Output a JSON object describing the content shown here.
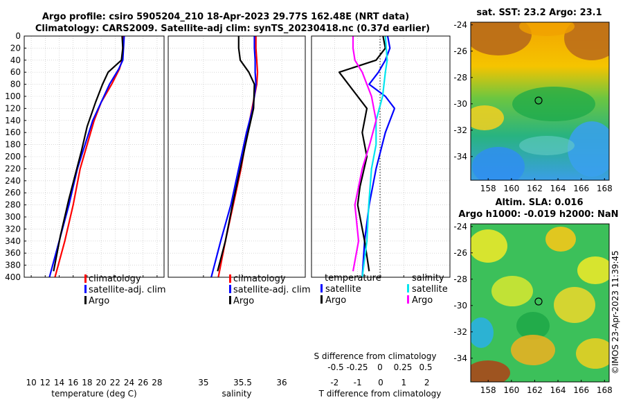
{
  "header": {
    "line1": "Argo profile: csiro 5905204_210 18-Apr-2023 29.77S 162.48E (NRT data)",
    "line2": "Climatology: CARS2009. Satellite-adj clim: synTS_20230418.nc (0.37d earlier)"
  },
  "colors": {
    "climatology": "#ff0000",
    "satellite": "#0000ff",
    "argo": "#000000",
    "sat_s": "#00e5ee",
    "argo_s": "#ff00ff"
  },
  "chart_data": [
    {
      "type": "line",
      "id": "temperature",
      "xlabel": "temperature (deg C)",
      "ylabel": "",
      "xlim": [
        9,
        29
      ],
      "ylim": [
        400,
        0
      ],
      "xticks": [
        10,
        12,
        14,
        16,
        18,
        20,
        22,
        24,
        26,
        28
      ],
      "yticks": [
        0,
        20,
        40,
        60,
        80,
        100,
        120,
        140,
        160,
        180,
        200,
        220,
        240,
        260,
        280,
        300,
        320,
        340,
        360,
        380,
        400
      ],
      "legend": [
        "climatology",
        "satellite-adj. clim",
        "Argo"
      ],
      "series": [
        {
          "name": "climatology",
          "color": "#ff0000",
          "x": [
            23.2,
            23.1,
            23.0,
            22.6,
            21.5,
            20.0,
            19.0,
            18.0,
            17.0,
            16.0,
            14.8,
            13.4
          ],
          "y": [
            0,
            20,
            40,
            55,
            80,
            110,
            140,
            180,
            220,
            280,
            340,
            400
          ]
        },
        {
          "name": "satellite-adj. clim",
          "color": "#0000ff",
          "x": [
            23.3,
            23.2,
            23.1,
            22.5,
            21.2,
            20.0,
            18.8,
            17.7,
            16.6,
            15.4,
            14.0,
            12.6
          ],
          "y": [
            0,
            20,
            40,
            55,
            80,
            110,
            140,
            180,
            220,
            280,
            340,
            400
          ]
        },
        {
          "name": "Argo",
          "color": "#000000",
          "x": [
            23.0,
            23.1,
            22.9,
            21.0,
            20.2,
            19.2,
            18.0,
            17.2,
            16.3,
            15.4,
            14.2,
            13.2
          ],
          "y": [
            0,
            20,
            40,
            60,
            80,
            110,
            150,
            190,
            230,
            270,
            330,
            390
          ]
        }
      ]
    },
    {
      "type": "line",
      "id": "salinity",
      "xlabel": "salinity",
      "ylabel": "",
      "xlim": [
        34.55,
        36.3
      ],
      "ylim": [
        400,
        0
      ],
      "xticks": [
        35,
        35.5,
        36
      ],
      "legend": [
        "climatology",
        "satellite-adj. clim",
        "Argo"
      ],
      "series": [
        {
          "name": "climatology",
          "color": "#ff0000",
          "x": [
            35.67,
            35.67,
            35.68,
            35.69,
            35.68,
            35.62,
            35.56,
            35.48,
            35.38,
            35.28,
            35.19
          ],
          "y": [
            0,
            20,
            40,
            60,
            80,
            120,
            160,
            220,
            280,
            340,
            400
          ]
        },
        {
          "name": "satellite-adj. clim",
          "color": "#0000ff",
          "x": [
            35.65,
            35.65,
            35.66,
            35.66,
            35.67,
            35.63,
            35.55,
            35.45,
            35.35,
            35.22,
            35.1
          ],
          "y": [
            0,
            20,
            40,
            60,
            80,
            120,
            160,
            220,
            280,
            340,
            400
          ]
        },
        {
          "name": "Argo",
          "color": "#000000",
          "x": [
            35.45,
            35.45,
            35.47,
            35.58,
            35.65,
            35.64,
            35.57,
            35.47,
            35.37,
            35.28,
            35.18
          ],
          "y": [
            0,
            20,
            40,
            60,
            80,
            120,
            160,
            220,
            280,
            340,
            390
          ]
        }
      ]
    },
    {
      "type": "line",
      "id": "difference",
      "xlabel": "T difference from climatology",
      "slabel": "S difference from climatology",
      "xlim": [
        -3,
        3
      ],
      "ylim": [
        400,
        0
      ],
      "xticks": [
        -2,
        -1,
        0,
        1,
        2
      ],
      "sticks": [
        "-0.5",
        "-0.25",
        "0",
        "0.25",
        "0.5"
      ],
      "legend": {
        "temperature_title": "temperature",
        "salinity_title": "salinity",
        "t_items": [
          "satellite",
          "Argo"
        ],
        "s_items": [
          "satellite",
          "Argo"
        ]
      },
      "series": [
        {
          "name": "T satellite",
          "color": "#0000ff",
          "x": [
            0.3,
            0.4,
            0.2,
            -0.1,
            -0.5,
            0.2,
            0.6,
            0.2,
            -0.2,
            -0.5,
            -0.7,
            -0.8
          ],
          "y": [
            0,
            20,
            40,
            60,
            80,
            100,
            120,
            160,
            220,
            280,
            340,
            400
          ]
        },
        {
          "name": "T Argo",
          "color": "#000000",
          "x": [
            0.1,
            0.2,
            -0.2,
            -1.8,
            -1.4,
            -0.6,
            -0.8,
            -0.6,
            -0.9,
            -1.0,
            -0.7,
            -0.5
          ],
          "y": [
            0,
            20,
            40,
            60,
            80,
            120,
            160,
            200,
            250,
            280,
            340,
            390
          ]
        },
        {
          "name": "S satellite",
          "color": "#00e5ee",
          "x": [
            0.05,
            0.06,
            0.07,
            0.05,
            0.02,
            -0.05,
            -0.05,
            -0.1,
            -0.13,
            -0.15,
            -0.2
          ],
          "y": [
            0,
            20,
            40,
            60,
            100,
            140,
            180,
            220,
            280,
            340,
            400
          ]
        },
        {
          "name": "S Argo",
          "color": "#ff00ff",
          "x": [
            -0.3,
            -0.3,
            -0.28,
            -0.2,
            -0.1,
            -0.05,
            -0.12,
            -0.2,
            -0.28,
            -0.24,
            -0.3
          ],
          "y": [
            0,
            20,
            40,
            60,
            100,
            140,
            180,
            220,
            280,
            340,
            390
          ]
        }
      ]
    },
    {
      "type": "heatmap",
      "id": "sst_map",
      "title": "sat. SST: 23.2 Argo: 23.1",
      "xticks": [
        158,
        160,
        162,
        164,
        166,
        168
      ],
      "yticks": [
        -24,
        -26,
        -28,
        -30,
        -32,
        -34
      ],
      "xlim": [
        156.5,
        168.4
      ],
      "ylim": [
        -35.8,
        -23.8
      ],
      "profile_marker": {
        "lon": 162.48,
        "lat": -29.77
      }
    },
    {
      "type": "heatmap",
      "id": "sla_map",
      "title1": "Altim. SLA: 0.016",
      "title2": "Argo h1000: -0.019 h2000: NaN",
      "xticks": [
        158,
        160,
        162,
        164,
        166,
        168
      ],
      "yticks": [
        -24,
        -26,
        -28,
        -30,
        -32,
        -34
      ],
      "xlim": [
        156.5,
        168.4
      ],
      "ylim": [
        -35.8,
        -23.8
      ],
      "profile_marker": {
        "lon": 162.48,
        "lat": -29.77
      }
    }
  ],
  "footer": {
    "credit": "©IMOS 23-Apr-2023 11:39:45"
  }
}
